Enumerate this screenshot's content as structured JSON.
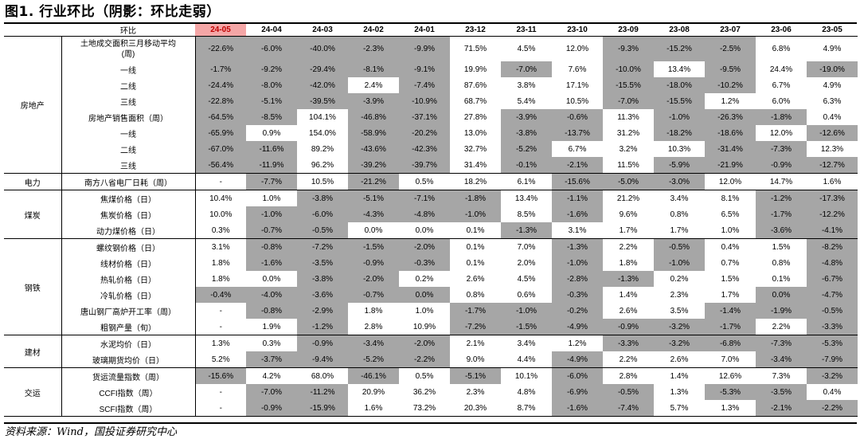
{
  "title": "图1. 行业环比（阴影：环比走弱）",
  "header_label": "环比",
  "months": [
    "24-05",
    "24-04",
    "24-03",
    "24-02",
    "24-01",
    "23-12",
    "23-11",
    "23-10",
    "23-09",
    "23-08",
    "23-07",
    "23-06",
    "23-05"
  ],
  "groups": [
    {
      "category": "房地产",
      "rows": [
        {
          "label": "土地成交面积三月移动平均\n(周)",
          "values": [
            "-22.6%",
            "-6.0%",
            "-40.0%",
            "-2.3%",
            "-9.9%",
            "71.5%",
            "4.5%",
            "12.0%",
            "-9.3%",
            "-15.2%",
            "-2.5%",
            "6.8%",
            "4.9%"
          ],
          "shaded": [
            1,
            1,
            1,
            1,
            1,
            0,
            0,
            0,
            1,
            1,
            1,
            0,
            0
          ]
        },
        {
          "label": "一线",
          "values": [
            "-1.7%",
            "-9.2%",
            "-29.4%",
            "-8.1%",
            "-9.1%",
            "19.9%",
            "-7.0%",
            "7.6%",
            "-10.0%",
            "13.4%",
            "-9.5%",
            "24.4%",
            "-19.0%"
          ],
          "shaded": [
            1,
            1,
            1,
            1,
            1,
            0,
            1,
            0,
            1,
            0,
            1,
            0,
            1
          ]
        },
        {
          "label": "二线",
          "values": [
            "-24.4%",
            "-8.0%",
            "-42.0%",
            "2.4%",
            "-7.4%",
            "87.6%",
            "3.8%",
            "17.1%",
            "-15.5%",
            "-18.0%",
            "-10.2%",
            "6.7%",
            "4.9%"
          ],
          "shaded": [
            1,
            1,
            1,
            0,
            1,
            0,
            0,
            0,
            1,
            1,
            1,
            0,
            0
          ]
        },
        {
          "label": "三线",
          "values": [
            "-22.8%",
            "-5.1%",
            "-39.5%",
            "-3.9%",
            "-10.9%",
            "68.7%",
            "5.4%",
            "10.5%",
            "-7.0%",
            "-15.5%",
            "1.2%",
            "6.0%",
            "6.3%"
          ],
          "shaded": [
            1,
            1,
            1,
            1,
            1,
            0,
            0,
            0,
            1,
            1,
            0,
            0,
            0
          ]
        },
        {
          "label": "房地产销售面积（周）",
          "values": [
            "-64.5%",
            "-8.5%",
            "104.1%",
            "-46.8%",
            "-37.1%",
            "27.8%",
            "-3.9%",
            "-0.6%",
            "11.3%",
            "-1.0%",
            "-26.3%",
            "-1.8%",
            "0.4%"
          ],
          "shaded": [
            1,
            1,
            0,
            1,
            1,
            0,
            1,
            1,
            0,
            1,
            1,
            1,
            0
          ]
        },
        {
          "label": "一线",
          "values": [
            "-65.9%",
            "0.9%",
            "154.0%",
            "-58.9%",
            "-20.2%",
            "13.0%",
            "-3.8%",
            "-13.7%",
            "31.2%",
            "-18.2%",
            "-18.6%",
            "12.0%",
            "-12.6%"
          ],
          "shaded": [
            1,
            0,
            0,
            1,
            1,
            0,
            1,
            1,
            0,
            1,
            1,
            0,
            1
          ]
        },
        {
          "label": "二线",
          "values": [
            "-67.0%",
            "-11.6%",
            "89.2%",
            "-43.6%",
            "-42.3%",
            "32.7%",
            "-5.2%",
            "6.7%",
            "3.2%",
            "10.3%",
            "-31.4%",
            "-7.3%",
            "12.3%"
          ],
          "shaded": [
            1,
            1,
            0,
            1,
            1,
            0,
            1,
            0,
            0,
            0,
            1,
            1,
            0
          ]
        },
        {
          "label": "三线",
          "values": [
            "-56.4%",
            "-11.9%",
            "96.2%",
            "-39.2%",
            "-39.7%",
            "31.4%",
            "-0.1%",
            "-2.1%",
            "11.5%",
            "-5.9%",
            "-21.9%",
            "-0.9%",
            "-12.7%"
          ],
          "shaded": [
            1,
            1,
            0,
            1,
            1,
            0,
            1,
            1,
            0,
            1,
            1,
            1,
            1
          ]
        }
      ]
    },
    {
      "category": "电力",
      "rows": [
        {
          "label": "南方八省电厂日耗（周）",
          "values": [
            "-",
            "-7.7%",
            "10.5%",
            "-21.2%",
            "0.5%",
            "18.2%",
            "6.1%",
            "-15.6%",
            "-5.0%",
            "-3.0%",
            "12.0%",
            "14.7%",
            "1.6%"
          ],
          "shaded": [
            0,
            1,
            0,
            1,
            0,
            0,
            0,
            1,
            1,
            1,
            0,
            0,
            0
          ]
        }
      ]
    },
    {
      "category": "煤炭",
      "rows": [
        {
          "label": "焦煤价格（日）",
          "values": [
            "10.4%",
            "1.0%",
            "-3.8%",
            "-5.1%",
            "-7.1%",
            "-1.8%",
            "13.4%",
            "-1.1%",
            "21.2%",
            "3.4%",
            "8.1%",
            "-1.2%",
            "-17.3%"
          ],
          "shaded": [
            0,
            0,
            1,
            1,
            1,
            1,
            0,
            1,
            0,
            0,
            0,
            1,
            1
          ]
        },
        {
          "label": "焦炭价格（日）",
          "values": [
            "10.0%",
            "-1.0%",
            "-6.0%",
            "-4.3%",
            "-4.8%",
            "-1.0%",
            "8.5%",
            "-1.6%",
            "9.6%",
            "0.8%",
            "6.5%",
            "-1.7%",
            "-12.2%"
          ],
          "shaded": [
            0,
            1,
            1,
            1,
            1,
            1,
            0,
            1,
            0,
            0,
            0,
            1,
            1
          ]
        },
        {
          "label": "动力煤价格（日）",
          "values": [
            "0.3%",
            "-0.7%",
            "-0.5%",
            "0.0%",
            "0.0%",
            "0.1%",
            "-1.3%",
            "3.1%",
            "1.7%",
            "1.7%",
            "1.0%",
            "-3.6%",
            "-4.1%"
          ],
          "shaded": [
            0,
            1,
            1,
            0,
            0,
            0,
            1,
            0,
            0,
            0,
            0,
            1,
            1
          ]
        }
      ]
    },
    {
      "category": "钢铁",
      "rows": [
        {
          "label": "螺纹钢价格（日）",
          "values": [
            "3.1%",
            "-0.8%",
            "-7.2%",
            "-1.5%",
            "-2.0%",
            "0.1%",
            "7.0%",
            "-1.3%",
            "2.2%",
            "-0.5%",
            "0.4%",
            "1.5%",
            "-8.2%"
          ],
          "shaded": [
            0,
            1,
            1,
            1,
            1,
            0,
            0,
            1,
            0,
            1,
            0,
            0,
            1
          ]
        },
        {
          "label": "线材价格（日）",
          "values": [
            "1.8%",
            "-1.6%",
            "-3.5%",
            "-0.9%",
            "-0.3%",
            "0.1%",
            "2.0%",
            "-1.0%",
            "1.8%",
            "-1.0%",
            "0.7%",
            "0.8%",
            "-4.8%"
          ],
          "shaded": [
            0,
            1,
            1,
            1,
            1,
            0,
            0,
            1,
            0,
            1,
            0,
            0,
            1
          ]
        },
        {
          "label": "热轧价格（日）",
          "values": [
            "1.8%",
            "0.0%",
            "-3.8%",
            "-2.0%",
            "0.2%",
            "2.6%",
            "4.5%",
            "-2.8%",
            "-1.3%",
            "0.2%",
            "1.5%",
            "0.1%",
            "-6.7%"
          ],
          "shaded": [
            0,
            0,
            1,
            1,
            0,
            0,
            0,
            1,
            1,
            0,
            0,
            0,
            1
          ]
        },
        {
          "label": "冷轧价格（日）",
          "values": [
            "-0.4%",
            "-4.0%",
            "-3.6%",
            "-0.7%",
            "0.0%",
            "0.8%",
            "0.6%",
            "-0.3%",
            "1.4%",
            "2.3%",
            "1.7%",
            "0.0%",
            "-4.7%"
          ],
          "shaded": [
            1,
            1,
            1,
            1,
            1,
            0,
            0,
            1,
            0,
            0,
            0,
            1,
            1
          ]
        },
        {
          "label": "唐山钢厂高炉开工率（周）",
          "values": [
            "-",
            "-0.8%",
            "-2.9%",
            "1.8%",
            "1.0%",
            "-1.7%",
            "-1.0%",
            "-0.2%",
            "2.6%",
            "3.5%",
            "-1.4%",
            "-1.9%",
            "-0.5%"
          ],
          "shaded": [
            0,
            1,
            1,
            0,
            0,
            1,
            1,
            1,
            0,
            0,
            1,
            1,
            1
          ]
        },
        {
          "label": "粗钢产量（旬）",
          "values": [
            "-",
            "1.9%",
            "-1.2%",
            "2.8%",
            "10.9%",
            "-7.2%",
            "-1.5%",
            "-4.9%",
            "-0.9%",
            "-3.2%",
            "-1.7%",
            "2.2%",
            "-3.3%"
          ],
          "shaded": [
            0,
            0,
            1,
            0,
            0,
            1,
            1,
            1,
            1,
            1,
            1,
            0,
            1
          ]
        }
      ]
    },
    {
      "category": "建材",
      "rows": [
        {
          "label": "水泥均价（日）",
          "values": [
            "1.3%",
            "0.3%",
            "-0.9%",
            "-3.4%",
            "-2.0%",
            "2.1%",
            "3.4%",
            "1.2%",
            "-3.3%",
            "-3.2%",
            "-6.8%",
            "-7.3%",
            "-5.3%"
          ],
          "shaded": [
            0,
            0,
            1,
            1,
            1,
            0,
            0,
            0,
            1,
            1,
            1,
            1,
            1
          ]
        },
        {
          "label": "玻璃期货均价（日）",
          "values": [
            "5.2%",
            "-3.7%",
            "-9.4%",
            "-5.2%",
            "-2.2%",
            "9.0%",
            "4.4%",
            "-4.9%",
            "2.2%",
            "2.6%",
            "7.0%",
            "-3.4%",
            "-7.9%"
          ],
          "shaded": [
            0,
            1,
            1,
            1,
            1,
            0,
            0,
            1,
            0,
            0,
            0,
            1,
            1
          ]
        }
      ]
    },
    {
      "category": "交运",
      "rows": [
        {
          "label": "货运流量指数（周）",
          "values": [
            "-15.6%",
            "4.2%",
            "68.0%",
            "-46.1%",
            "0.5%",
            "-5.1%",
            "10.1%",
            "-6.0%",
            "2.8%",
            "1.4%",
            "12.6%",
            "7.3%",
            "-3.2%"
          ],
          "shaded": [
            1,
            0,
            0,
            1,
            0,
            1,
            0,
            1,
            0,
            0,
            0,
            0,
            1
          ]
        },
        {
          "label": "CCFI指数（周）",
          "values": [
            "-",
            "-7.0%",
            "-11.2%",
            "20.9%",
            "36.2%",
            "2.3%",
            "4.8%",
            "-6.9%",
            "-0.5%",
            "1.3%",
            "-5.3%",
            "-3.5%",
            "0.4%"
          ],
          "shaded": [
            0,
            1,
            1,
            0,
            0,
            0,
            0,
            1,
            1,
            0,
            1,
            1,
            0
          ]
        },
        {
          "label": "SCFI指数（周）",
          "values": [
            "-",
            "-0.9%",
            "-15.9%",
            "1.6%",
            "73.2%",
            "20.3%",
            "8.7%",
            "-1.6%",
            "-7.4%",
            "5.7%",
            "1.3%",
            "-2.1%",
            "-2.2%"
          ],
          "shaded": [
            0,
            1,
            1,
            0,
            0,
            0,
            0,
            1,
            1,
            0,
            0,
            1,
            1
          ]
        }
      ]
    }
  ],
  "source": "资料来源：Wind，国投证券研究中心",
  "colors": {
    "shade": "#a6a6a6",
    "highlight_bg": "#f4a6a6",
    "highlight_text": "#c00000"
  }
}
